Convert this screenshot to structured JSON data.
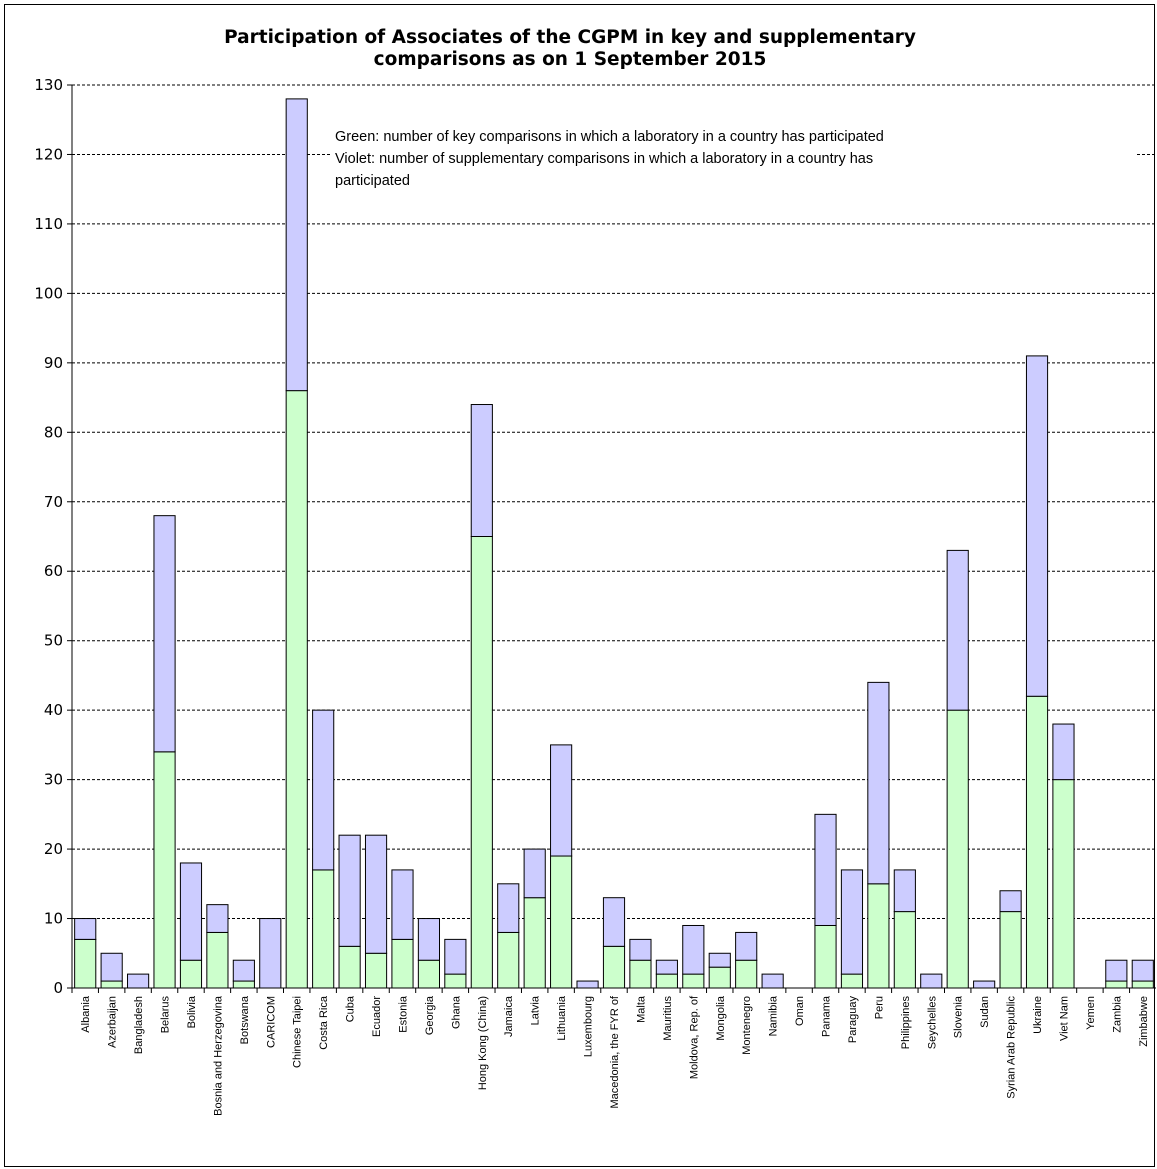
{
  "chart_data": {
    "type": "bar",
    "stacked": true,
    "title_lines": [
      "Participation of Associates of the CGPM in key and supplementary",
      "comparisons as on 1 September 2015"
    ],
    "annotation_lines": [
      "Green: number of key comparisons in which a laboratory in a country has participated",
      "Violet: number of supplementary comparisons in which a laboratory in a country has",
      "participated"
    ],
    "ylim": [
      0,
      130
    ],
    "yticks": [
      0,
      10,
      20,
      30,
      40,
      50,
      60,
      70,
      80,
      90,
      100,
      110,
      120,
      130
    ],
    "grid": true,
    "colors": {
      "key": "#ccffcc",
      "supplementary": "#ccccff",
      "outline": "#000000",
      "grid": "#000000"
    },
    "categories": [
      "Albania",
      "Azerbaijan",
      "Bangladesh",
      "Belarus",
      "Bolivia",
      "Bosnia and Herzegovina",
      "Botswana",
      "CARICOM",
      "Chinese Taipei",
      "Costa Rica",
      "Cuba",
      "Ecuador",
      "Estonia",
      "Georgia",
      "Ghana",
      "Hong Kong (China)",
      "Jamaica",
      "Latvia",
      "Lithuania",
      "Luxembourg",
      "Macedonia, the FYR of",
      "Malta",
      "Mauritius",
      "Moldova, Rep. of",
      "Mongolia",
      "Montenegro",
      "Namibia",
      "Oman",
      "Panama",
      "Paraguay",
      "Peru",
      "Philippines",
      "Seychelles",
      "Slovenia",
      "Sudan",
      "Syrian Arab Republic",
      "Ukraine",
      "Viet Nam",
      "Yemen",
      "Zambia",
      "Zimbabwe"
    ],
    "series": [
      {
        "key": "key",
        "values": [
          7,
          1,
          0,
          34,
          4,
          8,
          1,
          0,
          86,
          17,
          6,
          5,
          7,
          4,
          2,
          65,
          8,
          13,
          19,
          0,
          6,
          4,
          2,
          2,
          3,
          4,
          0,
          0,
          9,
          2,
          15,
          11,
          0,
          40,
          0,
          11,
          42,
          30,
          0,
          1,
          1
        ]
      },
      {
        "key": "supplementary",
        "values": [
          3,
          4,
          2,
          34,
          14,
          4,
          3,
          10,
          42,
          23,
          16,
          17,
          10,
          6,
          5,
          19,
          7,
          7,
          16,
          1,
          7,
          3,
          2,
          7,
          2,
          4,
          2,
          0,
          16,
          15,
          29,
          6,
          2,
          23,
          1,
          3,
          49,
          8,
          0,
          3,
          3
        ]
      }
    ]
  }
}
